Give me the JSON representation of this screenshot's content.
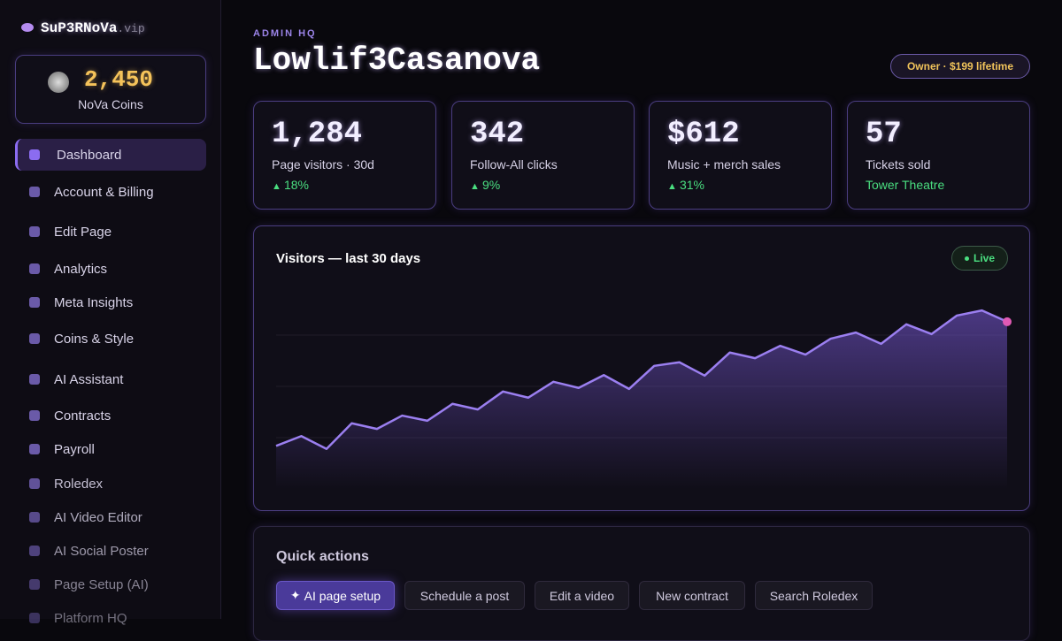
{
  "sidebar": {
    "brand": "SuP3RNoVa",
    "brand_suffix": ".vip",
    "coins": {
      "value": "2,450",
      "label": "NoVa Coins"
    },
    "nav": [
      "Dashboard",
      "Account & Billing",
      "Edit Page",
      "Analytics",
      "Meta Insights",
      "Coins & Style",
      "AI Assistant",
      "Contracts",
      "Payroll",
      "Roledex",
      "AI Video Editor",
      "AI Social Poster",
      "Page Setup (AI)",
      "Platform HQ"
    ]
  },
  "header": {
    "eyebrow": "ADMIN HQ",
    "title": "Lowlif3Casanova",
    "badge": "Owner · $199 lifetime"
  },
  "stats": [
    {
      "value": "1,284",
      "label": "Page visitors · 30d",
      "change": "18%"
    },
    {
      "value": "342",
      "label": "Follow-All clicks",
      "change": "9%"
    },
    {
      "value": "$612",
      "label": "Music + merch sales",
      "change": "31%"
    },
    {
      "value": "57",
      "label": "Tickets sold",
      "note": "Tower Theatre"
    }
  ],
  "chart_data": {
    "type": "area",
    "title": "Visitors — last 30 days",
    "status": "Live",
    "color": "#9b7ff0",
    "end_marker_color": "#e05ab4",
    "values": [
      0.84,
      1.03,
      0.78,
      1.28,
      1.17,
      1.43,
      1.33,
      1.66,
      1.55,
      1.9,
      1.78,
      2.09,
      1.97,
      2.22,
      1.95,
      2.4,
      2.47,
      2.21,
      2.66,
      2.55,
      2.79,
      2.62,
      2.93,
      3.05,
      2.83,
      3.21,
      3.02,
      3.38,
      3.48,
      3.26
    ],
    "ylim": [
      0,
      4
    ],
    "yticks": [
      1,
      2,
      3
    ],
    "grid": true
  },
  "quick_actions": {
    "title": "Quick actions",
    "buttons": [
      "AI page setup",
      "Schedule a post",
      "Edit a video",
      "New contract",
      "Search Roledex"
    ]
  }
}
